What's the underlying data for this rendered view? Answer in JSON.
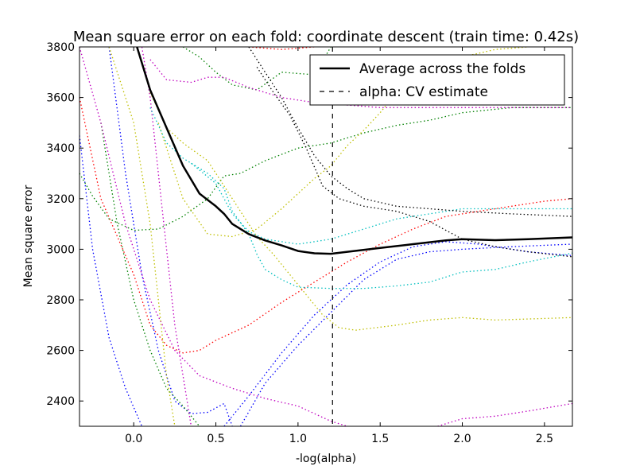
{
  "chart_data": {
    "type": "line",
    "title": "Mean square error on each fold: coordinate descent (train time: 0.42s)",
    "xlabel": "-log(alpha)",
    "ylabel": "Mean square error",
    "xlim": [
      -0.33,
      2.67
    ],
    "ylim": [
      2300,
      3800
    ],
    "x_ticks": [
      0.0,
      0.5,
      1.0,
      1.5,
      2.0,
      2.5
    ],
    "x_tick_labels": [
      "0.0",
      "0.5",
      "1.0",
      "1.5",
      "2.0",
      "2.5"
    ],
    "y_ticks": [
      2400,
      2600,
      2800,
      3000,
      3200,
      3400,
      3600,
      3800
    ],
    "y_tick_labels": [
      "2400",
      "2600",
      "2800",
      "3000",
      "3200",
      "3400",
      "3600",
      "3800"
    ],
    "legend_position": "top-right",
    "legend": [
      {
        "label": "Average across the folds",
        "style": "solid",
        "color": "#000000"
      },
      {
        "label": "alpha: CV estimate",
        "style": "dashed",
        "color": "#000000"
      }
    ],
    "cv_alpha": 1.21,
    "average": {
      "color": "#000000",
      "points": [
        [
          0.02,
          3800
        ],
        [
          0.1,
          3630
        ],
        [
          0.2,
          3480
        ],
        [
          0.3,
          3330
        ],
        [
          0.4,
          3220
        ],
        [
          0.5,
          3170
        ],
        [
          0.55,
          3140
        ],
        [
          0.6,
          3100
        ],
        [
          0.7,
          3060
        ],
        [
          0.8,
          3035
        ],
        [
          0.9,
          3015
        ],
        [
          1.0,
          2993
        ],
        [
          1.1,
          2984
        ],
        [
          1.2,
          2982
        ],
        [
          1.3,
          2990
        ],
        [
          1.5,
          3005
        ],
        [
          1.7,
          3020
        ],
        [
          1.9,
          3035
        ],
        [
          2.0,
          3040
        ],
        [
          2.2,
          3036
        ],
        [
          2.4,
          3040
        ],
        [
          2.67,
          3047
        ]
      ]
    },
    "folds": [
      {
        "color": "#0000ff",
        "points": [
          [
            -0.33,
            3450
          ],
          [
            -0.25,
            3000
          ],
          [
            -0.15,
            2650
          ],
          [
            -0.05,
            2450
          ],
          [
            0.05,
            2300
          ]
        ]
      },
      {
        "color": "#0000ff",
        "points": [
          [
            -0.15,
            3800
          ],
          [
            -0.05,
            3300
          ],
          [
            0.05,
            2900
          ],
          [
            0.15,
            2600
          ],
          [
            0.25,
            2400
          ],
          [
            0.35,
            2350
          ],
          [
            0.45,
            2355
          ],
          [
            0.55,
            2390
          ],
          [
            0.6,
            2300
          ]
        ]
      },
      {
        "color": "#0000ff",
        "points": [
          [
            0.65,
            2300
          ],
          [
            0.8,
            2470
          ],
          [
            1.0,
            2620
          ],
          [
            1.2,
            2750
          ],
          [
            1.4,
            2880
          ],
          [
            1.6,
            2960
          ],
          [
            1.8,
            2990
          ],
          [
            2.0,
            3000
          ],
          [
            2.3,
            3010
          ],
          [
            2.67,
            3020
          ]
        ]
      },
      {
        "color": "#0000ff",
        "points": [
          [
            0.55,
            2300
          ],
          [
            0.7,
            2420
          ],
          [
            0.9,
            2590
          ],
          [
            1.1,
            2740
          ],
          [
            1.3,
            2860
          ],
          [
            1.5,
            2950
          ],
          [
            1.7,
            3010
          ],
          [
            1.9,
            3030
          ],
          [
            2.1,
            3020
          ],
          [
            2.4,
            2990
          ],
          [
            2.67,
            2975
          ]
        ]
      },
      {
        "color": "#008000",
        "points": [
          [
            -0.33,
            3300
          ],
          [
            -0.25,
            3210
          ],
          [
            -0.15,
            3120
          ],
          [
            0.0,
            3075
          ],
          [
            0.15,
            3080
          ],
          [
            0.3,
            3130
          ],
          [
            0.45,
            3200
          ],
          [
            0.55,
            3290
          ],
          [
            0.65,
            3300
          ],
          [
            0.8,
            3350
          ],
          [
            1.0,
            3400
          ],
          [
            1.2,
            3420
          ],
          [
            1.4,
            3460
          ],
          [
            1.6,
            3490
          ],
          [
            1.8,
            3510
          ],
          [
            2.0,
            3540
          ],
          [
            2.3,
            3560
          ],
          [
            2.67,
            3560
          ]
        ]
      },
      {
        "color": "#008000",
        "points": [
          [
            0.3,
            3800
          ],
          [
            0.4,
            3760
          ],
          [
            0.5,
            3700
          ],
          [
            0.6,
            3650
          ],
          [
            0.75,
            3630
          ],
          [
            0.9,
            3700
          ],
          [
            1.1,
            3690
          ],
          [
            1.2,
            3800
          ]
        ]
      },
      {
        "color": "#008000",
        "points": [
          [
            -0.2,
            3500
          ],
          [
            -0.1,
            3100
          ],
          [
            0.0,
            2800
          ],
          [
            0.1,
            2600
          ],
          [
            0.2,
            2450
          ],
          [
            0.3,
            2380
          ],
          [
            0.4,
            2300
          ]
        ]
      },
      {
        "color": "#ff0000",
        "points": [
          [
            -0.33,
            3600
          ],
          [
            -0.2,
            3200
          ],
          [
            0.0,
            2900
          ],
          [
            0.1,
            2700
          ],
          [
            0.2,
            2620
          ],
          [
            0.3,
            2590
          ],
          [
            0.4,
            2600
          ],
          [
            0.5,
            2640
          ],
          [
            0.7,
            2700
          ],
          [
            0.9,
            2790
          ],
          [
            1.1,
            2870
          ],
          [
            1.3,
            2950
          ],
          [
            1.5,
            3020
          ],
          [
            1.7,
            3080
          ],
          [
            1.9,
            3130
          ],
          [
            2.1,
            3150
          ],
          [
            2.3,
            3170
          ],
          [
            2.5,
            3190
          ],
          [
            2.67,
            3200
          ]
        ]
      },
      {
        "color": "#ff0000",
        "points": [
          [
            0.7,
            3800
          ],
          [
            0.9,
            3790
          ],
          [
            1.1,
            3800
          ]
        ]
      },
      {
        "color": "#bf00bf",
        "points": [
          [
            -0.33,
            3800
          ],
          [
            -0.2,
            3500
          ],
          [
            -0.05,
            3100
          ],
          [
            0.1,
            2800
          ],
          [
            0.25,
            2600
          ],
          [
            0.4,
            2500
          ],
          [
            0.6,
            2450
          ],
          [
            0.8,
            2410
          ],
          [
            1.0,
            2380
          ],
          [
            1.2,
            2320
          ],
          [
            1.3,
            2300
          ]
        ]
      },
      {
        "color": "#bf00bf",
        "points": [
          [
            0.1,
            3750
          ],
          [
            0.2,
            3670
          ],
          [
            0.35,
            3660
          ],
          [
            0.45,
            3680
          ],
          [
            0.55,
            3680
          ],
          [
            0.7,
            3640
          ],
          [
            0.9,
            3600
          ],
          [
            1.1,
            3580
          ],
          [
            1.3,
            3570
          ],
          [
            1.5,
            3560
          ],
          [
            1.8,
            3560
          ],
          [
            2.0,
            3560
          ],
          [
            2.67,
            3560
          ]
        ]
      },
      {
        "color": "#bf00bf",
        "points": [
          [
            1.85,
            2300
          ],
          [
            2.0,
            2330
          ],
          [
            2.2,
            2340
          ],
          [
            2.4,
            2360
          ],
          [
            2.67,
            2390
          ]
        ]
      },
      {
        "color": "#bf00bf",
        "points": [
          [
            0.05,
            3800
          ],
          [
            0.1,
            3600
          ],
          [
            0.15,
            3300
          ],
          [
            0.2,
            3000
          ],
          [
            0.25,
            2700
          ],
          [
            0.3,
            2500
          ],
          [
            0.35,
            2300
          ]
        ]
      },
      {
        "color": "#bfbf00",
        "points": [
          [
            0.1,
            3620
          ],
          [
            0.2,
            3480
          ],
          [
            0.3,
            3420
          ],
          [
            0.45,
            3350
          ],
          [
            0.55,
            3250
          ],
          [
            0.65,
            3150
          ],
          [
            0.75,
            3050
          ],
          [
            0.85,
            2980
          ],
          [
            0.95,
            2900
          ],
          [
            1.05,
            2820
          ],
          [
            1.15,
            2740
          ],
          [
            1.25,
            2690
          ],
          [
            1.35,
            2680
          ],
          [
            1.6,
            2700
          ],
          [
            1.8,
            2720
          ],
          [
            2.0,
            2730
          ],
          [
            2.2,
            2720
          ],
          [
            2.67,
            2730
          ]
        ]
      },
      {
        "color": "#bfbf00",
        "points": [
          [
            0.15,
            3500
          ],
          [
            0.3,
            3200
          ],
          [
            0.45,
            3060
          ],
          [
            0.6,
            3050
          ],
          [
            0.75,
            3080
          ],
          [
            0.9,
            3160
          ],
          [
            1.0,
            3220
          ],
          [
            1.1,
            3280
          ],
          [
            1.2,
            3330
          ],
          [
            1.3,
            3410
          ],
          [
            1.4,
            3470
          ],
          [
            1.5,
            3540
          ],
          [
            1.6,
            3620
          ],
          [
            1.8,
            3700
          ],
          [
            2.0,
            3760
          ],
          [
            2.2,
            3790
          ],
          [
            2.4,
            3800
          ]
        ]
      },
      {
        "color": "#bfbf00",
        "points": [
          [
            -0.15,
            3800
          ],
          [
            0.0,
            3500
          ],
          [
            0.1,
            3100
          ],
          [
            0.15,
            2800
          ],
          [
            0.2,
            2500
          ],
          [
            0.25,
            2300
          ]
        ]
      },
      {
        "color": "#00bfbf",
        "points": [
          [
            0.1,
            3560
          ],
          [
            0.2,
            3420
          ],
          [
            0.3,
            3360
          ],
          [
            0.45,
            3300
          ],
          [
            0.55,
            3240
          ],
          [
            0.6,
            3150
          ],
          [
            0.7,
            3060
          ],
          [
            0.75,
            2980
          ],
          [
            0.8,
            2920
          ],
          [
            0.9,
            2880
          ],
          [
            1.0,
            2850
          ],
          [
            1.2,
            2845
          ],
          [
            1.4,
            2845
          ],
          [
            1.6,
            2855
          ],
          [
            1.8,
            2870
          ],
          [
            2.0,
            2910
          ],
          [
            2.2,
            2920
          ],
          [
            2.4,
            2950
          ],
          [
            2.67,
            2985
          ]
        ]
      },
      {
        "color": "#00bfbf",
        "points": [
          [
            0.35,
            3340
          ],
          [
            0.5,
            3260
          ],
          [
            0.6,
            3140
          ],
          [
            0.7,
            3070
          ],
          [
            0.8,
            3040
          ],
          [
            1.0,
            3020
          ],
          [
            1.2,
            3040
          ],
          [
            1.4,
            3080
          ],
          [
            1.6,
            3120
          ],
          [
            1.8,
            3140
          ],
          [
            2.0,
            3160
          ],
          [
            2.2,
            3160
          ],
          [
            2.67,
            3160
          ]
        ]
      },
      {
        "color": "#000000",
        "points": [
          [
            0.7,
            3800
          ],
          [
            0.8,
            3700
          ],
          [
            0.9,
            3600
          ],
          [
            1.0,
            3480
          ],
          [
            1.1,
            3370
          ],
          [
            1.2,
            3290
          ],
          [
            1.3,
            3240
          ],
          [
            1.4,
            3200
          ],
          [
            1.6,
            3170
          ],
          [
            1.8,
            3160
          ],
          [
            2.0,
            3150
          ],
          [
            2.3,
            3140
          ],
          [
            2.67,
            3130
          ]
        ]
      },
      {
        "color": "#000000",
        "points": [
          [
            0.75,
            3720
          ],
          [
            0.85,
            3620
          ],
          [
            0.95,
            3530
          ],
          [
            1.05,
            3400
          ],
          [
            1.15,
            3250
          ],
          [
            1.25,
            3200
          ],
          [
            1.4,
            3170
          ],
          [
            1.6,
            3150
          ],
          [
            1.8,
            3110
          ],
          [
            2.0,
            3040
          ],
          [
            2.2,
            3010
          ],
          [
            2.4,
            2990
          ],
          [
            2.67,
            2970
          ]
        ]
      }
    ]
  }
}
